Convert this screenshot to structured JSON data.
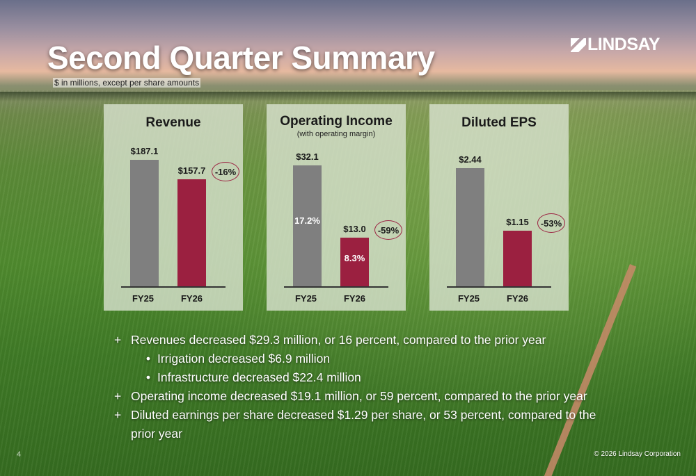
{
  "header": {
    "title": "Second Quarter Summary",
    "subtitle": "$ in millions, except per share amounts",
    "logo_text": "LINDSAY"
  },
  "colors": {
    "bar_fy25": "#7f7f7f",
    "bar_fy26": "#9b2040",
    "panel_bg": "#d7e1cd"
  },
  "chart_data": [
    {
      "type": "bar",
      "title": "Revenue",
      "categories": [
        "FY25",
        "FY26"
      ],
      "values": [
        187.1,
        157.7
      ],
      "value_labels": [
        "$187.1",
        "$157.7"
      ],
      "change_label": "-16%",
      "ylim": [
        0,
        200
      ]
    },
    {
      "type": "bar",
      "title": "Operating Income",
      "subtitle": "(with operating margin)",
      "categories": [
        "FY25",
        "FY26"
      ],
      "values": [
        32.1,
        13.0
      ],
      "value_labels": [
        "$32.1",
        "$13.0"
      ],
      "margin_labels": [
        "17.2%",
        "8.3%"
      ],
      "change_label": "-59%",
      "ylim": [
        0,
        36
      ]
    },
    {
      "type": "bar",
      "title": "Diluted EPS",
      "categories": [
        "FY25",
        "FY26"
      ],
      "values": [
        2.44,
        1.15
      ],
      "value_labels": [
        "$2.44",
        "$1.15"
      ],
      "change_label": "-53%",
      "ylim": [
        0,
        2.8
      ]
    }
  ],
  "bullets": [
    {
      "level": 1,
      "marker": "+",
      "text": "Revenues decreased $29.3 million, or 16 percent, compared to the prior year"
    },
    {
      "level": 2,
      "marker": "•",
      "text": "Irrigation decreased $6.9 million"
    },
    {
      "level": 2,
      "marker": "•",
      "text": "Infrastructure decreased $22.4 million"
    },
    {
      "level": 1,
      "marker": "+",
      "text": "Operating income decreased $19.1 million, or 59 percent, compared to the prior year"
    },
    {
      "level": 1,
      "marker": "+",
      "text": "Diluted earnings per share decreased $1.29 per share, or 53 percent, compared to the prior year"
    }
  ],
  "footer": {
    "page_number": "4",
    "copyright": "© 2026 Lindsay Corporation"
  }
}
